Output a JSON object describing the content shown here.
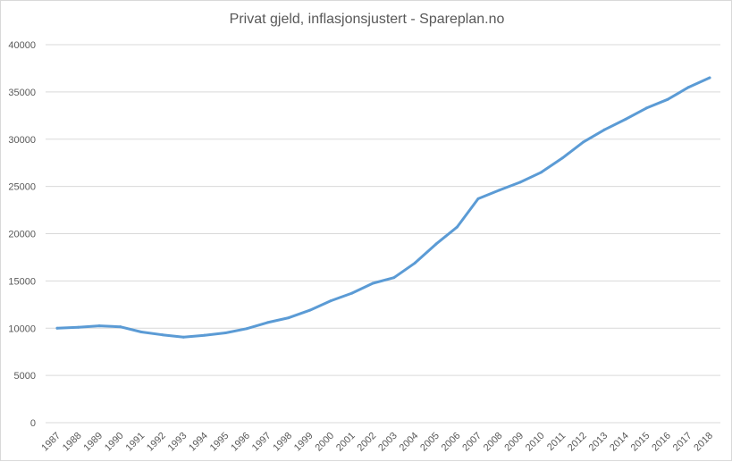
{
  "chart_data": {
    "type": "line",
    "title": "Privat gjeld, inflasjonsjustert - Spareplan.no",
    "xlabel": "",
    "ylabel": "",
    "ylim": [
      0,
      40000
    ],
    "yticks": [
      0,
      5000,
      10000,
      15000,
      20000,
      25000,
      30000,
      35000,
      40000
    ],
    "grid": true,
    "legend": "none",
    "categories": [
      "1987",
      "1988",
      "1989",
      "1990",
      "1991",
      "1992",
      "1993",
      "1994",
      "1995",
      "1996",
      "1997",
      "1998",
      "1999",
      "2000",
      "2001",
      "2002",
      "2003",
      "2004",
      "2005",
      "2006",
      "2007",
      "2008",
      "2009",
      "2010",
      "2011",
      "2012",
      "2013",
      "2014",
      "2015",
      "2016",
      "2017",
      "2018"
    ],
    "series": [
      {
        "color": "#5b9bd5",
        "values": [
          10000,
          10100,
          10250,
          10150,
          9600,
          9300,
          9050,
          9250,
          9500,
          9950,
          10600,
          11100,
          11900,
          12900,
          13700,
          14750,
          15350,
          16900,
          18900,
          20700,
          23700,
          24600,
          25450,
          26500,
          28000,
          29700,
          31000,
          32100,
          33300,
          34200,
          35500,
          36500
        ]
      }
    ]
  }
}
